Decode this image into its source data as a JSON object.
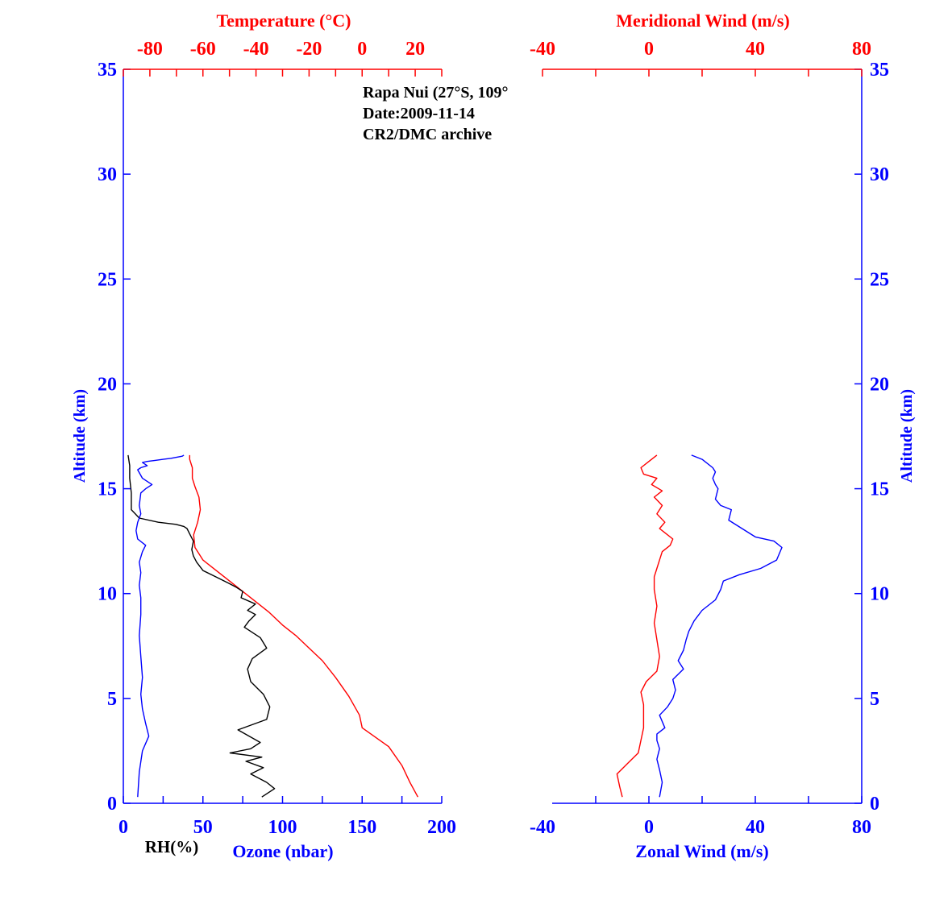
{
  "colors": {
    "axis_blue": "#0000FF",
    "axis_red": "#FF0000",
    "text_black": "#000000",
    "ozone_line": "#000000",
    "temp_line": "#FF0000",
    "rh_line": "#0000FF",
    "zonal_line": "#0000FF",
    "meridional_line": "#FF0000"
  },
  "annotation": {
    "line1": "Rapa Nui (27°S, 109°",
    "line2": "Date:2009-11-14",
    "line3": "CR2/DMC archive"
  },
  "chart_data": [
    {
      "type": "line",
      "panel": "left",
      "title": "",
      "y": {
        "label": "Altitude (km)",
        "ylim": [
          0,
          35
        ],
        "ticks": [
          0,
          5,
          10,
          15,
          20,
          25,
          30,
          35
        ]
      },
      "x_bottom": {
        "label": "Ozone (nbar)",
        "extra_label": "RH(%)",
        "xlim": [
          0,
          200
        ],
        "ticks": [
          0,
          50,
          100,
          150,
          200
        ]
      },
      "x_top": {
        "label": "Temperature (°C)",
        "xlim": [
          -90,
          30
        ],
        "ticks": [
          -80,
          -60,
          -40,
          -20,
          0,
          20
        ]
      },
      "series": [
        {
          "name": "Temperature",
          "axis": "top",
          "color": "#FF0000",
          "x": [
            21,
            18,
            15,
            10,
            0,
            -1,
            -5,
            -10,
            -15,
            -20,
            -25,
            -30,
            -35,
            -40,
            -45,
            -50,
            -55,
            -60,
            -63,
            -63.5,
            -62,
            -61,
            -61.5,
            -63,
            -64,
            -64,
            -65,
            -65
          ],
          "y": [
            0.3,
            1.0,
            1.8,
            2.7,
            3.6,
            4.2,
            5.1,
            6.0,
            6.8,
            7.4,
            8.0,
            8.5,
            9.1,
            9.6,
            10.1,
            10.6,
            11.1,
            11.6,
            12.2,
            12.8,
            13.4,
            14.0,
            14.6,
            15.1,
            15.5,
            16.0,
            16.4,
            16.6
          ]
        },
        {
          "name": "Ozone",
          "axis": "bottom",
          "color": "#000000",
          "x": [
            87,
            95,
            90,
            80,
            88,
            77,
            87,
            67,
            80,
            86,
            72,
            90,
            92,
            88,
            80,
            78,
            81,
            90,
            86,
            76,
            79,
            83,
            78,
            83,
            74,
            75,
            71,
            66,
            58,
            50,
            46,
            44,
            43,
            44,
            42,
            40,
            38,
            33,
            22,
            10,
            5,
            5,
            4,
            4,
            3
          ],
          "y": [
            0.3,
            0.7,
            1.0,
            1.4,
            1.7,
            2.0,
            2.2,
            2.4,
            2.6,
            2.9,
            3.5,
            4.0,
            4.6,
            5.2,
            5.8,
            6.4,
            6.9,
            7.4,
            7.9,
            8.4,
            8.7,
            9.0,
            9.2,
            9.5,
            9.8,
            10.1,
            10.3,
            10.5,
            10.8,
            11.1,
            11.5,
            11.8,
            12.1,
            12.5,
            12.8,
            13.1,
            13.2,
            13.3,
            13.4,
            13.6,
            14.0,
            14.8,
            15.5,
            16.1,
            16.6
          ]
        },
        {
          "name": "RH",
          "axis": "bottom",
          "color": "#0000FF",
          "x": [
            9,
            10,
            12,
            16,
            14,
            12,
            11,
            12,
            11,
            10,
            11,
            11,
            10,
            11,
            10,
            12,
            14,
            9,
            8,
            9,
            11,
            10,
            11,
            14,
            18,
            12,
            9,
            11,
            15,
            13,
            12,
            15,
            20,
            25,
            30,
            37,
            38
          ],
          "y": [
            0.3,
            1.5,
            2.5,
            3.2,
            3.8,
            4.5,
            5.2,
            6.0,
            7.0,
            8.0,
            9.0,
            9.8,
            10.4,
            11.0,
            11.5,
            12.0,
            12.3,
            12.6,
            13.0,
            13.4,
            13.8,
            14.2,
            14.8,
            15.0,
            15.2,
            15.5,
            15.9,
            16.0,
            16.1,
            16.2,
            16.25,
            16.3,
            16.35,
            16.4,
            16.45,
            16.55,
            16.6
          ]
        }
      ]
    },
    {
      "type": "line",
      "panel": "right",
      "title": "",
      "y": {
        "label": "Altitude (km)",
        "ylim": [
          0,
          35
        ],
        "ticks": [
          0,
          5,
          10,
          15,
          20,
          25,
          30,
          35
        ]
      },
      "x_bottom": {
        "label": "Zonal Wind (m/s)",
        "xlim": [
          -40,
          80
        ],
        "ticks": [
          -40,
          0,
          40,
          80
        ]
      },
      "x_top": {
        "label": "Meridional Wind (m/s)",
        "xlim": [
          -40,
          80
        ],
        "ticks": [
          -40,
          0,
          40,
          80
        ]
      },
      "series": [
        {
          "name": "Zonal Wind",
          "axis": "bottom",
          "color": "#0000FF",
          "x": [
            4,
            5,
            4,
            3,
            4,
            3,
            3,
            6,
            4,
            7,
            9,
            10,
            9,
            13,
            11,
            13,
            14,
            15,
            17,
            20,
            25,
            27,
            28,
            34,
            42,
            48,
            50,
            47,
            40,
            35,
            30,
            31,
            27,
            25,
            26,
            25,
            24,
            25,
            24,
            20,
            16
          ],
          "y": [
            0.3,
            1.0,
            1.6,
            2.1,
            2.6,
            3.0,
            3.3,
            3.6,
            4.2,
            4.6,
            5.0,
            5.4,
            5.9,
            6.4,
            6.8,
            7.3,
            7.8,
            8.2,
            8.7,
            9.2,
            9.7,
            10.2,
            10.6,
            10.9,
            11.2,
            11.6,
            12.2,
            12.5,
            12.7,
            13.1,
            13.5,
            14.0,
            14.2,
            14.5,
            15.0,
            15.2,
            15.5,
            15.8,
            16.0,
            16.4,
            16.6
          ]
        },
        {
          "name": "Meridional Wind",
          "axis": "bottom",
          "color": "#FF0000",
          "x": [
            -10,
            -11,
            -12,
            -8,
            -4,
            -3,
            -2,
            -2,
            -2,
            -3,
            -1,
            3,
            4,
            3,
            2,
            3,
            2,
            2,
            3,
            4,
            5,
            8,
            9,
            6,
            4,
            6,
            3,
            5,
            2,
            5,
            1,
            3,
            -2,
            -3,
            0,
            3
          ],
          "y": [
            0.3,
            0.8,
            1.4,
            1.9,
            2.4,
            3.0,
            3.6,
            4.1,
            4.7,
            5.3,
            5.8,
            6.3,
            7.0,
            7.8,
            8.6,
            9.4,
            10.2,
            10.8,
            11.2,
            11.6,
            12.0,
            12.3,
            12.6,
            12.9,
            13.1,
            13.4,
            13.8,
            14.2,
            14.6,
            14.9,
            15.2,
            15.5,
            15.7,
            16.0,
            16.3,
            16.6
          ]
        }
      ]
    }
  ]
}
